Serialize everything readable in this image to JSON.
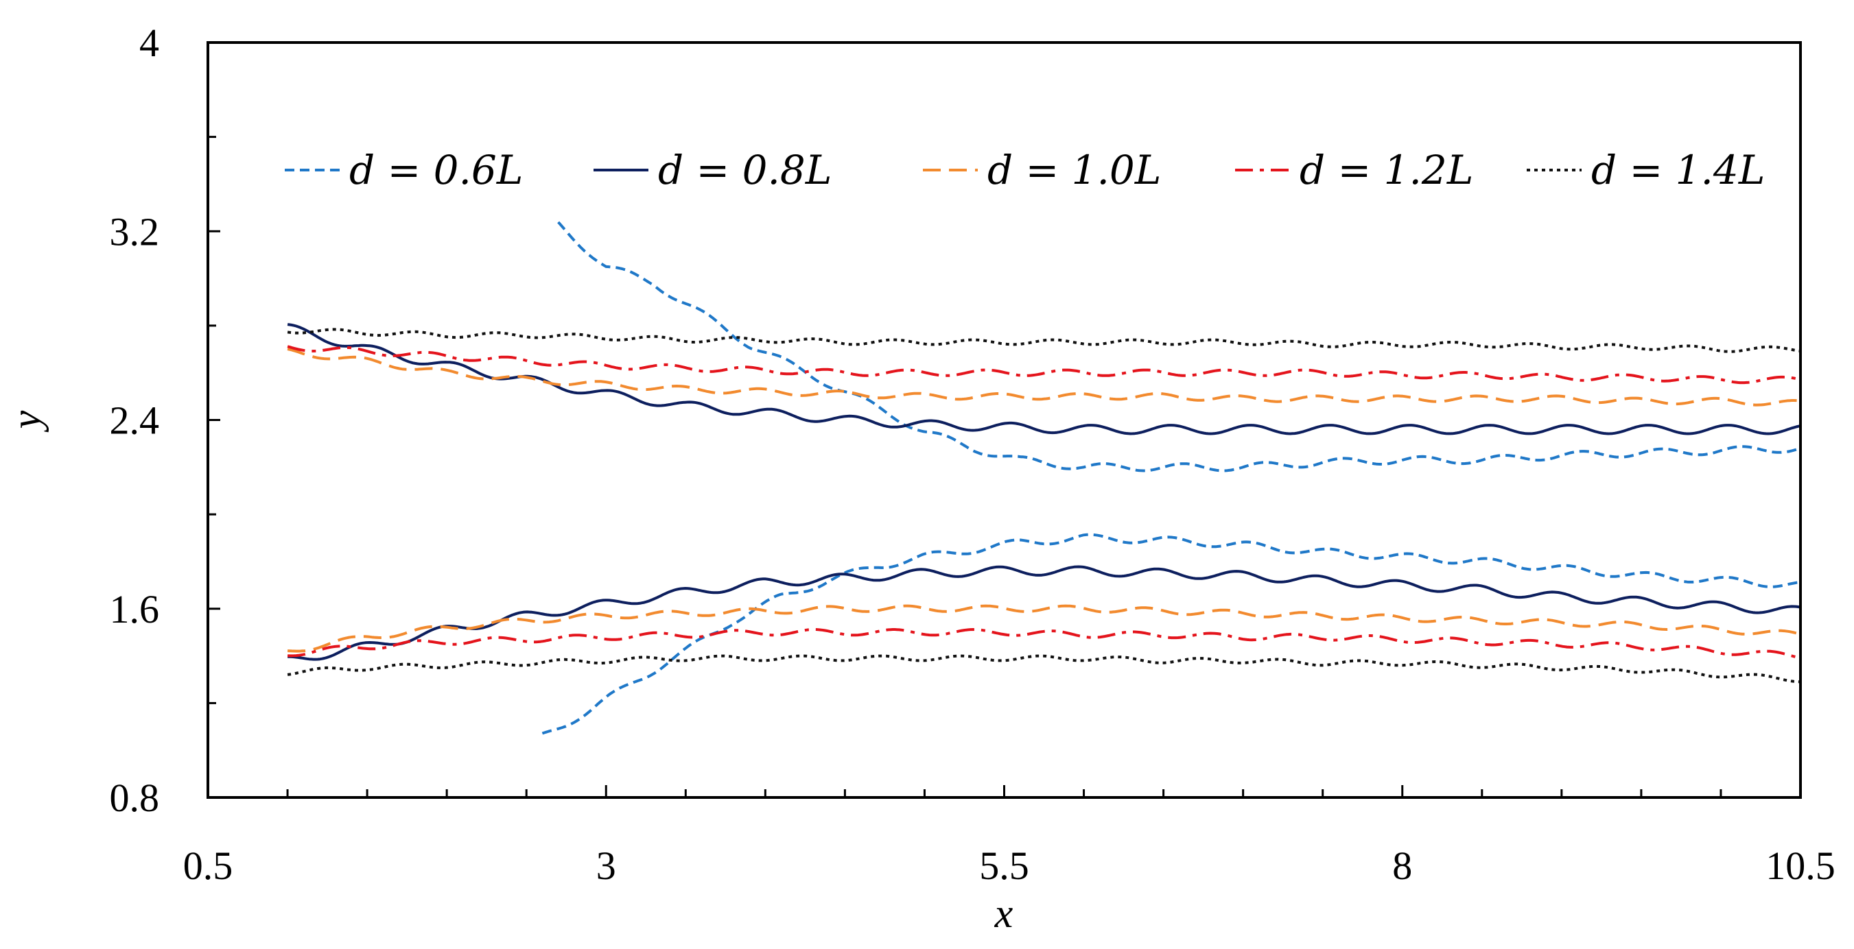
{
  "chart_data": {
    "type": "line",
    "title": "",
    "xlabel": "x",
    "ylabel": "y",
    "xlim": [
      0.5,
      10.5
    ],
    "ylim": [
      0.8,
      4.0
    ],
    "xticks": [
      0.5,
      3,
      5.5,
      8,
      10.5
    ],
    "xtick_labels": [
      "0.5",
      "3",
      "5.5",
      "8",
      "10.5"
    ],
    "yticks": [
      0.8,
      1.6,
      2.4,
      3.2,
      4.0
    ],
    "ytick_labels": [
      "0.8",
      "1.6",
      "2.4",
      "3.2",
      "4"
    ],
    "legend_position": "top",
    "series": [
      {
        "name": "d = 0.6L",
        "legend_prefix": "d = ",
        "legend_value": "0.6L",
        "color": "#1f78c8",
        "dash": "dashed-short",
        "upper": {
          "x": [
            2.7,
            3.0,
            3.3,
            3.6,
            3.9,
            4.2,
            4.5,
            4.8,
            5.0,
            5.3,
            5.6,
            6.0,
            6.5,
            7.0,
            7.5,
            8.0,
            8.5,
            9.0,
            9.5,
            10.0,
            10.5
          ],
          "y": [
            3.23,
            3.05,
            2.98,
            2.85,
            2.72,
            2.62,
            2.52,
            2.42,
            2.35,
            2.28,
            2.23,
            2.2,
            2.2,
            2.2,
            2.22,
            2.23,
            2.23,
            2.25,
            2.26,
            2.27,
            2.28
          ],
          "wave_amp": 0.015
        },
        "lower": {
          "x": [
            2.6,
            2.9,
            3.2,
            3.5,
            3.8,
            4.1,
            4.4,
            4.7,
            5.0,
            5.3,
            5.6,
            6.0,
            6.5,
            7.0,
            7.5,
            8.0,
            8.5,
            9.0,
            9.5,
            10.0,
            10.5
          ],
          "y": [
            1.06,
            1.17,
            1.3,
            1.42,
            1.55,
            1.65,
            1.72,
            1.78,
            1.82,
            1.85,
            1.88,
            1.9,
            1.89,
            1.87,
            1.84,
            1.82,
            1.8,
            1.77,
            1.74,
            1.72,
            1.7
          ],
          "wave_amp": 0.015
        }
      },
      {
        "name": "d = 0.8L",
        "legend_prefix": "d = ",
        "legend_value": "0.8L",
        "color": "#0d1f5e",
        "dash": "solid",
        "upper": {
          "x": [
            1.0,
            1.5,
            2.0,
            2.5,
            3.0,
            3.5,
            4.0,
            4.5,
            5.0,
            5.5,
            6.0,
            6.5,
            7.0,
            7.5,
            8.0,
            8.5,
            9.0,
            9.5,
            10.0,
            10.5
          ],
          "y": [
            2.79,
            2.7,
            2.63,
            2.57,
            2.51,
            2.46,
            2.43,
            2.4,
            2.38,
            2.37,
            2.36,
            2.36,
            2.36,
            2.36,
            2.36,
            2.36,
            2.36,
            2.36,
            2.36,
            2.36
          ],
          "wave_amp": 0.018
        },
        "lower": {
          "x": [
            1.0,
            1.5,
            2.0,
            2.5,
            3.0,
            3.5,
            4.0,
            4.5,
            5.0,
            5.5,
            6.0,
            6.5,
            7.0,
            7.5,
            8.0,
            8.5,
            9.0,
            9.5,
            10.0,
            10.5
          ],
          "y": [
            1.38,
            1.44,
            1.51,
            1.57,
            1.62,
            1.67,
            1.71,
            1.73,
            1.75,
            1.76,
            1.76,
            1.75,
            1.74,
            1.72,
            1.7,
            1.68,
            1.65,
            1.63,
            1.61,
            1.59
          ],
          "wave_amp": 0.018
        }
      },
      {
        "name": "d = 1.0L",
        "legend_prefix": "d = ",
        "legend_value": "1.0L",
        "color": "#f28a2e",
        "dash": "dashed",
        "upper": {
          "x": [
            1.0,
            1.5,
            2.0,
            2.5,
            3.0,
            3.5,
            4.0,
            4.5,
            5.0,
            5.5,
            6.0,
            6.5,
            7.0,
            7.5,
            8.0,
            8.5,
            9.0,
            9.5,
            10.0,
            10.5
          ],
          "y": [
            2.69,
            2.65,
            2.6,
            2.57,
            2.55,
            2.53,
            2.52,
            2.51,
            2.5,
            2.5,
            2.5,
            2.5,
            2.49,
            2.49,
            2.49,
            2.49,
            2.49,
            2.48,
            2.48,
            2.47
          ],
          "wave_amp": 0.012
        },
        "lower": {
          "x": [
            1.0,
            1.5,
            2.0,
            2.5,
            3.0,
            3.5,
            4.0,
            4.5,
            5.0,
            5.5,
            6.0,
            6.5,
            7.0,
            7.5,
            8.0,
            8.5,
            9.0,
            9.5,
            10.0,
            10.5
          ],
          "y": [
            1.42,
            1.48,
            1.52,
            1.55,
            1.57,
            1.58,
            1.59,
            1.6,
            1.6,
            1.6,
            1.6,
            1.59,
            1.58,
            1.57,
            1.56,
            1.55,
            1.54,
            1.53,
            1.51,
            1.49
          ],
          "wave_amp": 0.012
        }
      },
      {
        "name": "d = 1.2L",
        "legend_prefix": "d = ",
        "legend_value": "1.2L",
        "color": "#e4141c",
        "dash": "dash-dot",
        "upper": {
          "x": [
            1.0,
            1.5,
            2.0,
            2.5,
            3.0,
            3.5,
            4.0,
            4.5,
            5.0,
            5.5,
            6.0,
            6.5,
            7.0,
            7.5,
            8.0,
            8.5,
            9.0,
            9.5,
            10.0,
            10.5
          ],
          "y": [
            2.71,
            2.69,
            2.67,
            2.65,
            2.63,
            2.62,
            2.61,
            2.6,
            2.6,
            2.6,
            2.6,
            2.6,
            2.6,
            2.6,
            2.59,
            2.59,
            2.58,
            2.58,
            2.57,
            2.57
          ],
          "wave_amp": 0.012
        },
        "lower": {
          "x": [
            1.0,
            1.5,
            2.0,
            2.5,
            3.0,
            3.5,
            4.0,
            4.5,
            5.0,
            5.5,
            6.0,
            6.5,
            7.0,
            7.5,
            8.0,
            8.5,
            9.0,
            9.5,
            10.0,
            10.5
          ],
          "y": [
            1.41,
            1.44,
            1.46,
            1.47,
            1.48,
            1.49,
            1.5,
            1.5,
            1.5,
            1.5,
            1.49,
            1.49,
            1.48,
            1.48,
            1.47,
            1.46,
            1.45,
            1.44,
            1.42,
            1.4
          ],
          "wave_amp": 0.012
        }
      },
      {
        "name": "d = 1.4L",
        "legend_prefix": "d = ",
        "legend_value": "1.4L",
        "color": "#111111",
        "dash": "dotted",
        "upper": {
          "x": [
            1.0,
            1.5,
            2.0,
            2.5,
            3.0,
            3.5,
            4.0,
            4.5,
            5.0,
            5.5,
            6.0,
            6.5,
            7.0,
            7.5,
            8.0,
            8.5,
            9.0,
            9.5,
            10.0,
            10.5
          ],
          "y": [
            2.78,
            2.77,
            2.76,
            2.76,
            2.75,
            2.74,
            2.74,
            2.73,
            2.73,
            2.73,
            2.73,
            2.73,
            2.73,
            2.72,
            2.72,
            2.72,
            2.71,
            2.71,
            2.7,
            2.7
          ],
          "wave_amp": 0.01
        },
        "lower": {
          "x": [
            1.0,
            1.5,
            2.0,
            2.5,
            3.0,
            3.5,
            4.0,
            4.5,
            5.0,
            5.5,
            6.0,
            6.5,
            7.0,
            7.5,
            8.0,
            8.5,
            9.0,
            9.5,
            10.0,
            10.5
          ],
          "y": [
            1.33,
            1.35,
            1.36,
            1.37,
            1.38,
            1.39,
            1.39,
            1.39,
            1.39,
            1.39,
            1.39,
            1.38,
            1.38,
            1.37,
            1.37,
            1.36,
            1.35,
            1.34,
            1.32,
            1.3
          ],
          "wave_amp": 0.01
        }
      }
    ]
  }
}
